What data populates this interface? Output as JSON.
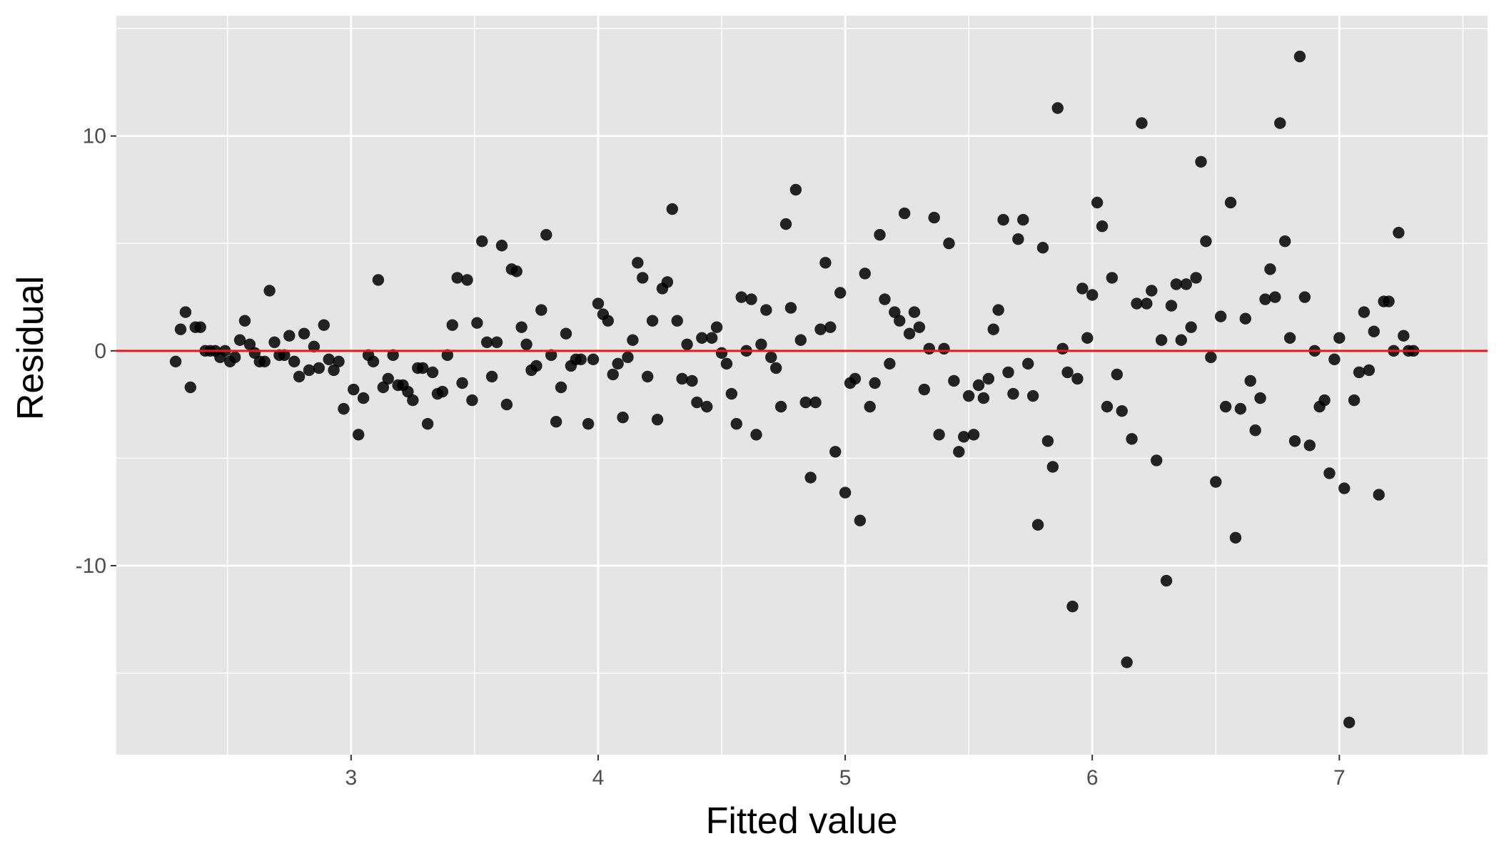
{
  "chart_data": {
    "type": "scatter",
    "xlabel": "Fitted value",
    "ylabel": "Residual",
    "xlim": [
      2.05,
      7.6
    ],
    "ylim": [
      -18.8,
      15.6
    ],
    "x_ticks": [
      3,
      4,
      5,
      6,
      7
    ],
    "x_tick_labels": [
      "3",
      "4",
      "5",
      "6",
      "7"
    ],
    "x_minor_ticks": [
      2.5,
      3.5,
      4.5,
      5.5,
      6.5,
      7.5
    ],
    "y_ticks": [
      -10,
      0,
      10
    ],
    "y_tick_labels": [
      "-10",
      "0",
      "10"
    ],
    "y_minor_ticks": [
      -15,
      -5,
      5,
      15
    ],
    "grid": true,
    "panel_background": "#e5e5e5",
    "grid_color": "#ffffff",
    "point_color": "#000000",
    "reference_line": {
      "y": 0,
      "color": "#e31a1c"
    },
    "series": [
      {
        "points": [
          [
            2.29,
            -0.5
          ],
          [
            2.31,
            1.0
          ],
          [
            2.33,
            1.8
          ],
          [
            2.35,
            -1.7
          ],
          [
            2.37,
            1.1
          ],
          [
            2.39,
            1.1
          ],
          [
            2.41,
            0.0
          ],
          [
            2.43,
            0.0
          ],
          [
            2.45,
            0.0
          ],
          [
            2.47,
            -0.3
          ],
          [
            2.49,
            0.0
          ],
          [
            2.51,
            -0.5
          ],
          [
            2.53,
            -0.3
          ],
          [
            2.55,
            0.5
          ],
          [
            2.57,
            1.4
          ],
          [
            2.59,
            0.3
          ],
          [
            2.61,
            -0.1
          ],
          [
            2.63,
            -0.5
          ],
          [
            2.65,
            -0.5
          ],
          [
            2.67,
            2.8
          ],
          [
            2.69,
            0.4
          ],
          [
            2.71,
            -0.2
          ],
          [
            2.73,
            -0.2
          ],
          [
            2.75,
            0.7
          ],
          [
            2.77,
            -0.5
          ],
          [
            2.79,
            -1.2
          ],
          [
            2.81,
            0.8
          ],
          [
            2.83,
            -0.9
          ],
          [
            2.85,
            0.2
          ],
          [
            2.87,
            -0.8
          ],
          [
            2.89,
            1.2
          ],
          [
            2.91,
            -0.4
          ],
          [
            2.93,
            -0.9
          ],
          [
            2.95,
            -0.5
          ],
          [
            2.97,
            -2.7
          ],
          [
            3.01,
            -1.8
          ],
          [
            3.03,
            -3.9
          ],
          [
            3.05,
            -2.2
          ],
          [
            3.07,
            -0.2
          ],
          [
            3.09,
            -0.5
          ],
          [
            3.11,
            3.3
          ],
          [
            3.13,
            -1.7
          ],
          [
            3.15,
            -1.3
          ],
          [
            3.17,
            -0.2
          ],
          [
            3.19,
            -1.6
          ],
          [
            3.21,
            -1.6
          ],
          [
            3.23,
            -1.9
          ],
          [
            3.25,
            -2.3
          ],
          [
            3.27,
            -0.8
          ],
          [
            3.29,
            -0.8
          ],
          [
            3.31,
            -3.4
          ],
          [
            3.33,
            -1.0
          ],
          [
            3.35,
            -2.0
          ],
          [
            3.37,
            -1.9
          ],
          [
            3.39,
            -0.2
          ],
          [
            3.41,
            1.2
          ],
          [
            3.43,
            3.4
          ],
          [
            3.45,
            -1.5
          ],
          [
            3.47,
            3.3
          ],
          [
            3.49,
            -2.3
          ],
          [
            3.51,
            1.3
          ],
          [
            3.53,
            5.1
          ],
          [
            3.55,
            0.4
          ],
          [
            3.57,
            -1.2
          ],
          [
            3.59,
            0.4
          ],
          [
            3.61,
            4.9
          ],
          [
            3.63,
            -2.5
          ],
          [
            3.65,
            3.8
          ],
          [
            3.67,
            3.7
          ],
          [
            3.69,
            1.1
          ],
          [
            3.71,
            0.3
          ],
          [
            3.73,
            -0.9
          ],
          [
            3.75,
            -0.7
          ],
          [
            3.77,
            1.9
          ],
          [
            3.79,
            5.4
          ],
          [
            3.81,
            -0.2
          ],
          [
            3.83,
            -3.3
          ],
          [
            3.85,
            -1.7
          ],
          [
            3.87,
            0.8
          ],
          [
            3.89,
            -0.7
          ],
          [
            3.91,
            -0.4
          ],
          [
            3.93,
            -0.4
          ],
          [
            3.96,
            -3.4
          ],
          [
            3.98,
            -0.4
          ],
          [
            4.0,
            2.2
          ],
          [
            4.02,
            1.7
          ],
          [
            4.04,
            1.4
          ],
          [
            4.06,
            -1.1
          ],
          [
            4.08,
            -0.6
          ],
          [
            4.1,
            -3.1
          ],
          [
            4.12,
            -0.3
          ],
          [
            4.14,
            0.5
          ],
          [
            4.16,
            4.1
          ],
          [
            4.18,
            3.4
          ],
          [
            4.2,
            -1.2
          ],
          [
            4.22,
            1.4
          ],
          [
            4.24,
            -3.2
          ],
          [
            4.26,
            2.9
          ],
          [
            4.28,
            3.2
          ],
          [
            4.3,
            6.6
          ],
          [
            4.32,
            1.4
          ],
          [
            4.34,
            -1.3
          ],
          [
            4.36,
            0.3
          ],
          [
            4.38,
            -1.4
          ],
          [
            4.4,
            -2.4
          ],
          [
            4.42,
            0.6
          ],
          [
            4.44,
            -2.6
          ],
          [
            4.46,
            0.6
          ],
          [
            4.48,
            1.1
          ],
          [
            4.5,
            -0.1
          ],
          [
            4.52,
            -0.6
          ],
          [
            4.54,
            -2.0
          ],
          [
            4.56,
            -3.4
          ],
          [
            4.58,
            2.5
          ],
          [
            4.6,
            0.0
          ],
          [
            4.62,
            2.4
          ],
          [
            4.64,
            -3.9
          ],
          [
            4.66,
            0.3
          ],
          [
            4.68,
            1.9
          ],
          [
            4.7,
            -0.3
          ],
          [
            4.72,
            -0.8
          ],
          [
            4.74,
            -2.6
          ],
          [
            4.76,
            5.9
          ],
          [
            4.78,
            2.0
          ],
          [
            4.8,
            7.5
          ],
          [
            4.82,
            0.5
          ],
          [
            4.84,
            -2.4
          ],
          [
            4.86,
            -5.9
          ],
          [
            4.88,
            -2.4
          ],
          [
            4.9,
            1.0
          ],
          [
            4.92,
            4.1
          ],
          [
            4.94,
            1.1
          ],
          [
            4.96,
            -4.7
          ],
          [
            4.98,
            2.7
          ],
          [
            5.0,
            -6.6
          ],
          [
            5.02,
            -1.5
          ],
          [
            5.04,
            -1.3
          ],
          [
            5.06,
            -7.9
          ],
          [
            5.08,
            3.6
          ],
          [
            5.1,
            -2.6
          ],
          [
            5.12,
            -1.5
          ],
          [
            5.14,
            5.4
          ],
          [
            5.16,
            2.4
          ],
          [
            5.18,
            -0.6
          ],
          [
            5.2,
            1.8
          ],
          [
            5.22,
            1.4
          ],
          [
            5.24,
            6.4
          ],
          [
            5.26,
            0.8
          ],
          [
            5.28,
            1.8
          ],
          [
            5.3,
            1.1
          ],
          [
            5.32,
            -1.8
          ],
          [
            5.34,
            0.1
          ],
          [
            5.36,
            6.2
          ],
          [
            5.38,
            -3.9
          ],
          [
            5.4,
            0.1
          ],
          [
            5.42,
            5.0
          ],
          [
            5.44,
            -1.4
          ],
          [
            5.46,
            -4.7
          ],
          [
            5.48,
            -4.0
          ],
          [
            5.5,
            -2.1
          ],
          [
            5.52,
            -3.9
          ],
          [
            5.54,
            -1.6
          ],
          [
            5.56,
            -2.2
          ],
          [
            5.58,
            -1.3
          ],
          [
            5.6,
            1.0
          ],
          [
            5.62,
            1.9
          ],
          [
            5.64,
            6.1
          ],
          [
            5.66,
            -1.0
          ],
          [
            5.68,
            -2.0
          ],
          [
            5.7,
            5.2
          ],
          [
            5.72,
            6.1
          ],
          [
            5.74,
            -0.6
          ],
          [
            5.76,
            -2.1
          ],
          [
            5.78,
            -8.1
          ],
          [
            5.8,
            4.8
          ],
          [
            5.82,
            -4.2
          ],
          [
            5.84,
            -5.4
          ],
          [
            5.86,
            11.3
          ],
          [
            5.88,
            0.1
          ],
          [
            5.9,
            -1.0
          ],
          [
            5.92,
            -11.9
          ],
          [
            5.94,
            -1.3
          ],
          [
            5.96,
            2.9
          ],
          [
            5.98,
            0.6
          ],
          [
            6.0,
            2.6
          ],
          [
            6.02,
            6.9
          ],
          [
            6.04,
            5.8
          ],
          [
            6.06,
            -2.6
          ],
          [
            6.08,
            3.4
          ],
          [
            6.1,
            -1.1
          ],
          [
            6.12,
            -2.8
          ],
          [
            6.14,
            -14.5
          ],
          [
            6.16,
            -4.1
          ],
          [
            6.18,
            2.2
          ],
          [
            6.2,
            10.6
          ],
          [
            6.22,
            2.2
          ],
          [
            6.24,
            2.8
          ],
          [
            6.26,
            -5.1
          ],
          [
            6.28,
            0.5
          ],
          [
            6.3,
            -10.7
          ],
          [
            6.32,
            2.1
          ],
          [
            6.34,
            3.1
          ],
          [
            6.36,
            0.5
          ],
          [
            6.38,
            3.1
          ],
          [
            6.4,
            1.1
          ],
          [
            6.42,
            3.4
          ],
          [
            6.44,
            8.8
          ],
          [
            6.46,
            5.1
          ],
          [
            6.48,
            -0.3
          ],
          [
            6.5,
            -6.1
          ],
          [
            6.52,
            1.6
          ],
          [
            6.54,
            -2.6
          ],
          [
            6.56,
            6.9
          ],
          [
            6.58,
            -8.7
          ],
          [
            6.6,
            -2.7
          ],
          [
            6.62,
            1.5
          ],
          [
            6.64,
            -1.4
          ],
          [
            6.66,
            -3.7
          ],
          [
            6.68,
            -2.2
          ],
          [
            6.7,
            2.4
          ],
          [
            6.72,
            3.8
          ],
          [
            6.74,
            2.5
          ],
          [
            6.76,
            10.6
          ],
          [
            6.78,
            5.1
          ],
          [
            6.8,
            0.6
          ],
          [
            6.82,
            -4.2
          ],
          [
            6.84,
            13.7
          ],
          [
            6.86,
            2.5
          ],
          [
            6.88,
            -4.4
          ],
          [
            6.9,
            0.0
          ],
          [
            6.92,
            -2.6
          ],
          [
            6.94,
            -2.3
          ],
          [
            6.96,
            -5.7
          ],
          [
            6.98,
            -0.4
          ],
          [
            7.0,
            0.6
          ],
          [
            7.02,
            -6.4
          ],
          [
            7.04,
            -17.3
          ],
          [
            7.06,
            -2.3
          ],
          [
            7.08,
            -1.0
          ],
          [
            7.1,
            1.8
          ],
          [
            7.12,
            -0.9
          ],
          [
            7.14,
            0.9
          ],
          [
            7.16,
            -6.7
          ],
          [
            7.18,
            2.3
          ],
          [
            7.2,
            2.3
          ],
          [
            7.22,
            0.0
          ],
          [
            7.24,
            5.5
          ],
          [
            7.26,
            0.7
          ],
          [
            7.28,
            0.0
          ],
          [
            7.3,
            0.0
          ]
        ]
      }
    ]
  }
}
